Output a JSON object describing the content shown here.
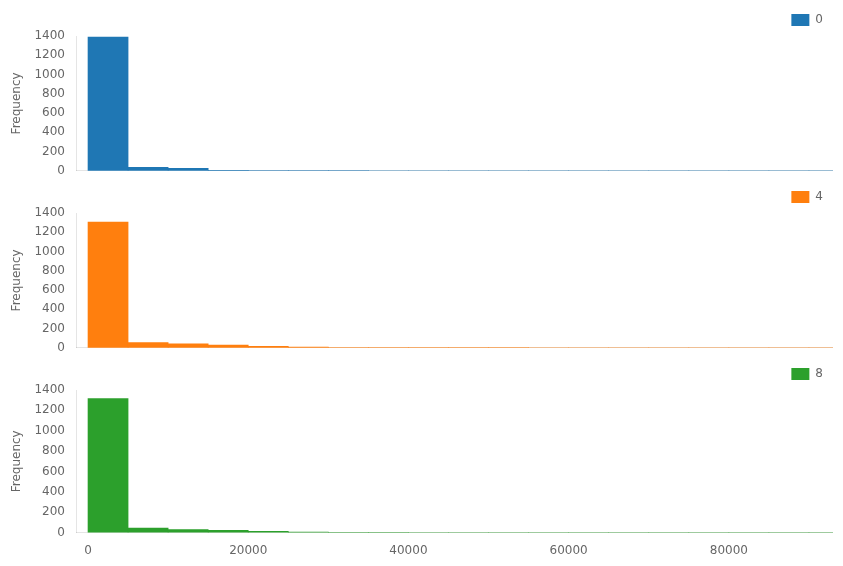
{
  "chart_data": [
    {
      "type": "histogram",
      "bins": [
        0,
        5000,
        10000,
        15000,
        20000,
        25000,
        30000,
        35000,
        40000,
        45000,
        50000,
        55000,
        60000,
        65000,
        70000,
        75000,
        80000,
        85000,
        90000,
        95000
      ],
      "series": [
        {
          "name": "0",
          "color": "#1f77b4",
          "values": [
            1390,
            35,
            25,
            5,
            2,
            1,
            1,
            0,
            0,
            0,
            0,
            0,
            0,
            0,
            0,
            0,
            0,
            0,
            0
          ]
        }
      ],
      "ylabel": "Frequency",
      "xlim": [
        -1500,
        93000
      ],
      "xticks": [
        0,
        20000,
        40000,
        60000,
        80000
      ],
      "ylim": [
        0,
        1400
      ],
      "yticks": [
        0,
        200,
        400,
        600,
        800,
        1000,
        1200,
        1400
      ],
      "grid": false,
      "legend": "upper right",
      "tick_labels": "y"
    },
    {
      "type": "histogram",
      "bins": [
        0,
        5000,
        10000,
        15000,
        20000,
        25000,
        30000,
        35000,
        40000,
        45000,
        50000,
        55000,
        60000,
        65000,
        70000,
        75000,
        80000,
        85000,
        90000,
        95000
      ],
      "series": [
        {
          "name": "4",
          "color": "#ff7f0e",
          "values": [
            1305,
            55,
            40,
            28,
            15,
            8,
            3,
            2,
            1,
            1,
            1,
            0,
            0,
            0,
            0,
            0,
            0,
            0,
            0
          ]
        }
      ],
      "ylabel": "Frequency",
      "xlim": [
        -1500,
        93000
      ],
      "xticks": [
        0,
        20000,
        40000,
        60000,
        80000
      ],
      "ylim": [
        0,
        1400
      ],
      "yticks": [
        0,
        200,
        400,
        600,
        800,
        1000,
        1200,
        1400
      ],
      "grid": false,
      "legend": "upper right",
      "tick_labels": "y"
    },
    {
      "type": "histogram",
      "bins": [
        0,
        5000,
        10000,
        15000,
        20000,
        25000,
        30000,
        35000,
        40000,
        45000,
        50000,
        55000,
        60000,
        65000,
        70000,
        75000,
        80000,
        85000,
        90000,
        95000
      ],
      "series": [
        {
          "name": "8",
          "color": "#2ca02c",
          "values": [
            1315,
            45,
            30,
            22,
            12,
            6,
            3,
            2,
            1,
            1,
            0,
            0,
            0,
            0,
            0,
            0,
            0,
            0,
            0
          ]
        }
      ],
      "ylabel": "Frequency",
      "xlim": [
        -1500,
        93000
      ],
      "xticks": [
        0,
        20000,
        40000,
        60000,
        80000
      ],
      "ylim": [
        0,
        1400
      ],
      "yticks": [
        0,
        200,
        400,
        600,
        800,
        1000,
        1200,
        1400
      ],
      "grid": false,
      "legend": "upper right"
    }
  ]
}
